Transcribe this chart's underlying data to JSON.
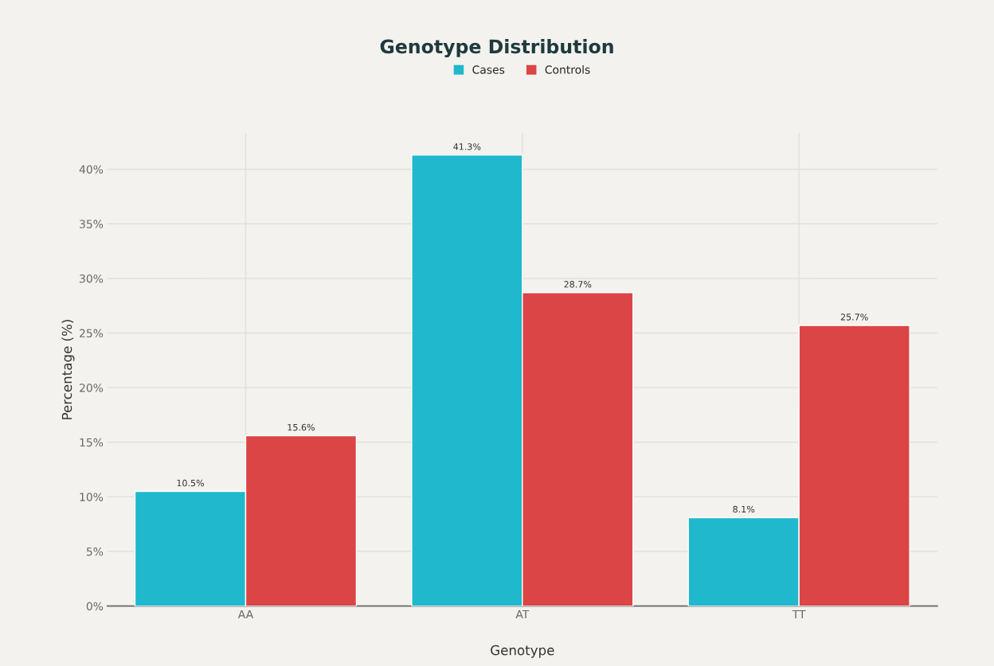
{
  "chart_data": {
    "type": "bar",
    "title": "Genotype Distribution",
    "xlabel": "Genotype",
    "ylabel": "Percentage (%)",
    "categories": [
      "AA",
      "AT",
      "TT"
    ],
    "series": [
      {
        "name": "Cases",
        "color": "#1fb8cd",
        "values": [
          10.5,
          41.3,
          8.1
        ],
        "value_labels": [
          "10.5%",
          "41.3%",
          "8.1%"
        ]
      },
      {
        "name": "Controls",
        "color": "#db4545",
        "values": [
          15.6,
          28.7,
          25.7
        ],
        "value_labels": [
          "15.6%",
          "28.7%",
          "25.7%"
        ]
      }
    ],
    "ylim": [
      0,
      43.3
    ],
    "yticks": [
      {
        "value": 0,
        "label": "0%"
      },
      {
        "value": 5,
        "label": "5%"
      },
      {
        "value": 10,
        "label": "10%"
      },
      {
        "value": 15,
        "label": "15%"
      },
      {
        "value": 20,
        "label": "20%"
      },
      {
        "value": 25,
        "label": "25%"
      },
      {
        "value": 30,
        "label": "30%"
      },
      {
        "value": 35,
        "label": "35%"
      },
      {
        "value": 40,
        "label": "40%"
      }
    ],
    "grid": true,
    "legend": "top"
  }
}
